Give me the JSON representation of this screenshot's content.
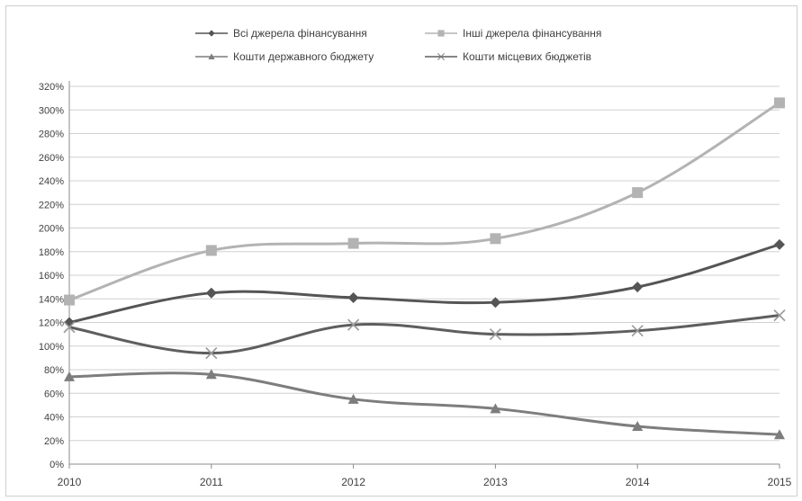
{
  "chart_data": {
    "type": "line",
    "title": "",
    "xlabel": "",
    "ylabel": "",
    "x": [
      "2010",
      "2011",
      "2012",
      "2013",
      "2014",
      "2015"
    ],
    "ylim": [
      0,
      320
    ],
    "y_tick_step": 20,
    "y_tick_suffix": "%",
    "grid": true,
    "legend_position": "top",
    "series": [
      {
        "name": "Всі джерела фінансування",
        "values": [
          120,
          145,
          141,
          137,
          150,
          186
        ],
        "color": "#555555",
        "marker": "diamond",
        "width": 3
      },
      {
        "name": "Інші джерела фінансування",
        "values": [
          139,
          181,
          187,
          191,
          230,
          306
        ],
        "color": "#b3b3b3",
        "marker": "square",
        "width": 3
      },
      {
        "name": "Кошти державного бюджету",
        "values": [
          74,
          76,
          55,
          47,
          32,
          25
        ],
        "color": "#7d7d7d",
        "marker": "triangle",
        "width": 3
      },
      {
        "name": "Кошти місцевих бюджетів",
        "values": [
          116,
          94,
          118,
          110,
          113,
          126
        ],
        "color": "#5e5e5e",
        "marker": "x",
        "width": 3
      }
    ]
  }
}
